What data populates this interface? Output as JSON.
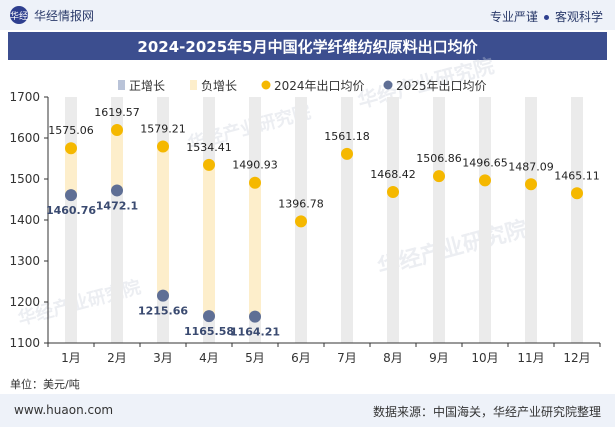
{
  "header": {
    "brand": "华经情报网",
    "logo_text": "华经",
    "tagline_left": "专业严谨",
    "tagline_right": "客观科学"
  },
  "title": "2024-2025年5月中国化学纤维纺织原料出口均价",
  "unit": "单位：美元/吨",
  "footer": {
    "site": "www.huaon.com",
    "source": "数据来源：中国海关，华经产业研究院整理"
  },
  "watermark": "华经产业研究院",
  "colors": {
    "positive": "#b9c3d8",
    "negative": "#fdeecb",
    "series2024": "#f5b800",
    "series2025": "#5f6f95",
    "band": "#ebebeb"
  },
  "chart_data": {
    "type": "line",
    "categories": [
      "1月",
      "2月",
      "3月",
      "4月",
      "5月",
      "6月",
      "7月",
      "8月",
      "9月",
      "10月",
      "11月",
      "12月"
    ],
    "legend": [
      "正增长",
      "负增长",
      "2024年出口均价",
      "2025年出口均价"
    ],
    "series": [
      {
        "name": "2024年出口均价",
        "values": [
          1575.06,
          1619.57,
          1579.21,
          1534.41,
          1490.93,
          1396.78,
          1561.18,
          1468.42,
          1506.86,
          1496.65,
          1487.09,
          1465.11
        ]
      },
      {
        "name": "2025年出口均价",
        "values": [
          1460.76,
          1472.1,
          1215.66,
          1165.58,
          1164.21,
          null,
          null,
          null,
          null,
          null,
          null,
          null
        ]
      }
    ],
    "ylim": [
      1100,
      1700
    ],
    "yticks": [
      1100,
      1200,
      1300,
      1400,
      1500,
      1600,
      1700
    ],
    "legend_position": "top",
    "grid": false
  }
}
